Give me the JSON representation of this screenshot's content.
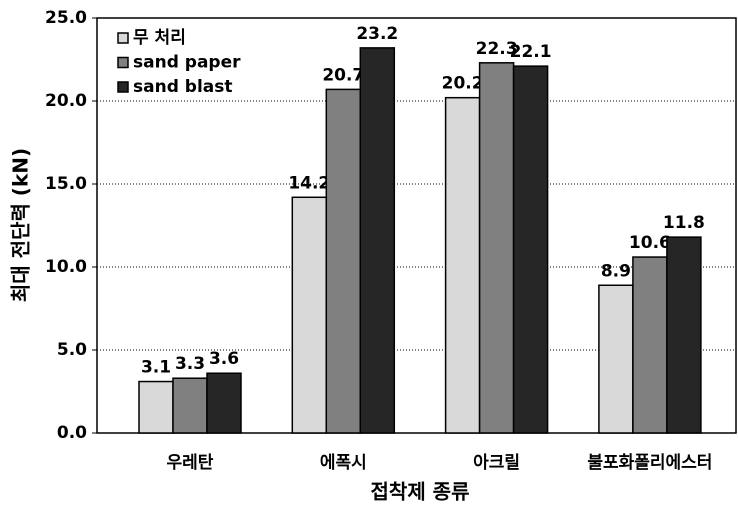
{
  "chart_data": {
    "type": "bar",
    "xlabel": "접착제 종류",
    "ylabel": "최대 전단력 (kN)",
    "categories": [
      "우레탄",
      "에폭시",
      "아크릴",
      "불포화폴리에스터"
    ],
    "series": [
      {
        "name": "무 처리",
        "color": "#d9d9d9",
        "values": [
          3.1,
          14.2,
          20.2,
          8.9
        ]
      },
      {
        "name": "sand paper",
        "color": "#808080",
        "values": [
          3.3,
          20.7,
          22.3,
          10.6
        ]
      },
      {
        "name": "sand blast",
        "color": "#262626",
        "values": [
          3.6,
          23.2,
          22.1,
          11.8
        ]
      }
    ],
    "ylim": [
      0,
      25
    ],
    "yticks": [
      {
        "value": 0,
        "label": "0.0"
      },
      {
        "value": 5,
        "label": "5.0"
      },
      {
        "value": 10,
        "label": "10.0"
      },
      {
        "value": 15,
        "label": "15.0"
      },
      {
        "value": 20,
        "label": "20.0"
      },
      {
        "value": 25,
        "label": "25.0"
      }
    ],
    "grid": true,
    "legend": "upper left"
  }
}
